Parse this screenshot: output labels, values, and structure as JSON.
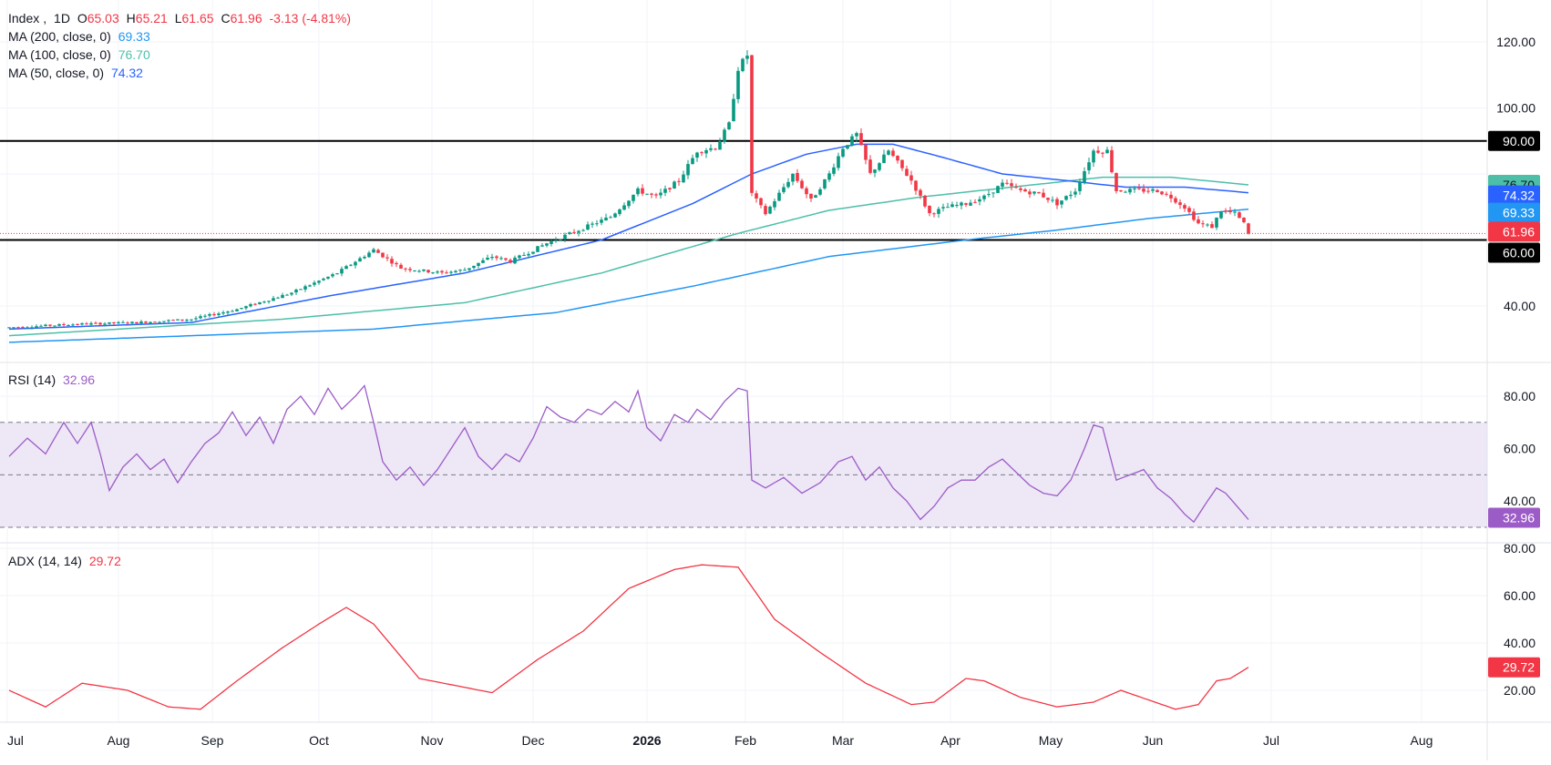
{
  "symbol": {
    "name": "Index",
    "interval": "1D",
    "open_label": "O",
    "open": "65.03",
    "high_label": "H",
    "high": "65.21",
    "low_label": "L",
    "low": "61.65",
    "close_label": "C",
    "close": "61.96",
    "change": "-3.13 (-4.81%)"
  },
  "indicators": {
    "ma200": {
      "label": "MA (200, close, 0)",
      "value": "69.33",
      "color": "#2196f3"
    },
    "ma100": {
      "label": "MA (100, close, 0)",
      "value": "76.70",
      "color": "#4dbfa9"
    },
    "ma50": {
      "label": "MA (50, close, 0)",
      "value": "74.32",
      "color": "#2962ff"
    },
    "rsi": {
      "label": "RSI (14)",
      "value": "32.96",
      "color": "#9c5cc7"
    },
    "adx": {
      "label": "ADX (14, 14)",
      "value": "29.72",
      "color": "#f23645"
    }
  },
  "colors": {
    "up": "#089981",
    "down": "#f23645",
    "level_line": "#000000",
    "rsi_band": "#ede7f6",
    "grid": "#f0f3fa",
    "axis_text": "#131722"
  },
  "price_axis": {
    "ticks": [
      "120.00",
      "100.00",
      "40.00"
    ],
    "levels": [
      "90.00",
      "60.00"
    ],
    "current_price": "61.96",
    "level_values": [
      90,
      60
    ]
  },
  "rsi_axis": {
    "ticks": [
      "80.00",
      "60.00",
      "40.00"
    ],
    "bands": [
      70,
      50,
      30
    ]
  },
  "adx_axis": {
    "ticks": [
      "80.00",
      "60.00",
      "40.00",
      "20.00"
    ]
  },
  "time_axis": [
    {
      "label": "Jul",
      "bold": false
    },
    {
      "label": "Aug",
      "bold": false
    },
    {
      "label": "Sep",
      "bold": false
    },
    {
      "label": "Oct",
      "bold": false
    },
    {
      "label": "Nov",
      "bold": false
    },
    {
      "label": "Dec",
      "bold": false
    },
    {
      "label": "2026",
      "bold": true
    },
    {
      "label": "Feb",
      "bold": false
    },
    {
      "label": "Mar",
      "bold": false
    },
    {
      "label": "Apr",
      "bold": false
    },
    {
      "label": "May",
      "bold": false
    },
    {
      "label": "Jun",
      "bold": false
    },
    {
      "label": "Jul",
      "bold": false
    },
    {
      "label": "Aug",
      "bold": false
    }
  ],
  "chart_data": {
    "type": "line",
    "title": "Index, 1D",
    "x_unit": "trading days (daily bars, Jul 2025 – Jun 2026)",
    "price_ylim": [
      22,
      132
    ],
    "price_anchors": [
      [
        0,
        33.5
      ],
      [
        15,
        34.5
      ],
      [
        28,
        35
      ],
      [
        40,
        36
      ],
      [
        50,
        39
      ],
      [
        62,
        44
      ],
      [
        72,
        50
      ],
      [
        80,
        57
      ],
      [
        86,
        51.5
      ],
      [
        95,
        50
      ],
      [
        100,
        51
      ],
      [
        106,
        55
      ],
      [
        110,
        53.5
      ],
      [
        118,
        59
      ],
      [
        125,
        63
      ],
      [
        132,
        67
      ],
      [
        138,
        75
      ],
      [
        142,
        73
      ],
      [
        147,
        78
      ],
      [
        151,
        87
      ],
      [
        155,
        88
      ],
      [
        158,
        95
      ],
      [
        160,
        112
      ],
      [
        162,
        116
      ],
      [
        163,
        74
      ],
      [
        166,
        68
      ],
      [
        172,
        80
      ],
      [
        176,
        72
      ],
      [
        180,
        80
      ],
      [
        183,
        88
      ],
      [
        186,
        92
      ],
      [
        189,
        80
      ],
      [
        193,
        87
      ],
      [
        198,
        78
      ],
      [
        202,
        68
      ],
      [
        206,
        70
      ],
      [
        210,
        71
      ],
      [
        214,
        73
      ],
      [
        218,
        77
      ],
      [
        222,
        75
      ],
      [
        226,
        74
      ],
      [
        230,
        71
      ],
      [
        234,
        75
      ],
      [
        238,
        87
      ],
      [
        241,
        87
      ],
      [
        243,
        75
      ],
      [
        248,
        75
      ],
      [
        252,
        75
      ],
      [
        255,
        73
      ],
      [
        258,
        70
      ],
      [
        261,
        65
      ],
      [
        264,
        64
      ],
      [
        266,
        69
      ],
      [
        269,
        68
      ],
      [
        271,
        65
      ],
      [
        272,
        61.96
      ]
    ],
    "ma50_anchors": [
      [
        0,
        33
      ],
      [
        40,
        35
      ],
      [
        70,
        43
      ],
      [
        100,
        50
      ],
      [
        130,
        60
      ],
      [
        150,
        71
      ],
      [
        163,
        80
      ],
      [
        175,
        86
      ],
      [
        186,
        89
      ],
      [
        194,
        89
      ],
      [
        205,
        85
      ],
      [
        218,
        80
      ],
      [
        232,
        78
      ],
      [
        245,
        76
      ],
      [
        258,
        76
      ],
      [
        272,
        74.32
      ]
    ],
    "ma100_anchors": [
      [
        0,
        31
      ],
      [
        60,
        36
      ],
      [
        100,
        41
      ],
      [
        130,
        50
      ],
      [
        160,
        62
      ],
      [
        180,
        69
      ],
      [
        200,
        73
      ],
      [
        220,
        76
      ],
      [
        240,
        79
      ],
      [
        255,
        79
      ],
      [
        272,
        76.7
      ]
    ],
    "ma200_anchors": [
      [
        0,
        29
      ],
      [
        80,
        33
      ],
      [
        120,
        38
      ],
      [
        150,
        46
      ],
      [
        180,
        55
      ],
      [
        210,
        60
      ],
      [
        230,
        63
      ],
      [
        250,
        66.5
      ],
      [
        272,
        69.33
      ]
    ],
    "rsi_ylim": [
      25,
      88
    ],
    "rsi_anchors": [
      [
        0,
        57
      ],
      [
        4,
        64
      ],
      [
        8,
        58
      ],
      [
        12,
        70
      ],
      [
        15,
        62
      ],
      [
        18,
        70
      ],
      [
        20,
        58
      ],
      [
        22,
        44
      ],
      [
        25,
        53
      ],
      [
        28,
        58
      ],
      [
        31,
        52
      ],
      [
        34,
        56
      ],
      [
        37,
        47
      ],
      [
        40,
        55
      ],
      [
        43,
        62
      ],
      [
        46,
        66
      ],
      [
        49,
        74
      ],
      [
        52,
        65
      ],
      [
        55,
        72
      ],
      [
        58,
        62
      ],
      [
        61,
        75
      ],
      [
        64,
        80
      ],
      [
        67,
        73
      ],
      [
        70,
        83
      ],
      [
        73,
        75
      ],
      [
        76,
        80
      ],
      [
        78,
        84
      ],
      [
        80,
        70
      ],
      [
        82,
        55
      ],
      [
        85,
        48
      ],
      [
        88,
        53
      ],
      [
        91,
        46
      ],
      [
        94,
        52
      ],
      [
        97,
        60
      ],
      [
        100,
        68
      ],
      [
        103,
        57
      ],
      [
        106,
        52
      ],
      [
        109,
        58
      ],
      [
        112,
        55
      ],
      [
        115,
        64
      ],
      [
        118,
        76
      ],
      [
        121,
        72
      ],
      [
        124,
        70
      ],
      [
        127,
        75
      ],
      [
        130,
        73
      ],
      [
        133,
        78
      ],
      [
        136,
        74
      ],
      [
        138,
        82
      ],
      [
        140,
        68
      ],
      [
        143,
        63
      ],
      [
        146,
        73
      ],
      [
        149,
        70
      ],
      [
        151,
        75
      ],
      [
        154,
        71
      ],
      [
        157,
        78
      ],
      [
        160,
        83
      ],
      [
        162,
        82
      ],
      [
        163,
        48
      ],
      [
        166,
        45
      ],
      [
        170,
        49
      ],
      [
        174,
        43
      ],
      [
        178,
        47
      ],
      [
        182,
        55
      ],
      [
        185,
        57
      ],
      [
        188,
        48
      ],
      [
        191,
        53
      ],
      [
        194,
        45
      ],
      [
        197,
        40
      ],
      [
        200,
        33
      ],
      [
        203,
        38
      ],
      [
        206,
        45
      ],
      [
        209,
        48
      ],
      [
        212,
        48
      ],
      [
        215,
        53
      ],
      [
        218,
        56
      ],
      [
        221,
        51
      ],
      [
        224,
        46
      ],
      [
        227,
        43
      ],
      [
        230,
        42
      ],
      [
        233,
        48
      ],
      [
        236,
        60
      ],
      [
        238,
        69
      ],
      [
        240,
        68
      ],
      [
        243,
        48
      ],
      [
        246,
        50
      ],
      [
        249,
        52
      ],
      [
        252,
        45
      ],
      [
        255,
        41
      ],
      [
        258,
        35
      ],
      [
        260,
        32
      ],
      [
        263,
        40
      ],
      [
        265,
        45
      ],
      [
        267,
        43
      ],
      [
        270,
        37
      ],
      [
        272,
        32.96
      ]
    ],
    "adx_ylim": [
      8,
      84
    ],
    "adx_anchors": [
      [
        0,
        20
      ],
      [
        8,
        13
      ],
      [
        16,
        23
      ],
      [
        26,
        20
      ],
      [
        35,
        13
      ],
      [
        42,
        12
      ],
      [
        50,
        24
      ],
      [
        60,
        38
      ],
      [
        68,
        48
      ],
      [
        74,
        55
      ],
      [
        80,
        48
      ],
      [
        90,
        25
      ],
      [
        98,
        22
      ],
      [
        106,
        19
      ],
      [
        116,
        33
      ],
      [
        126,
        45
      ],
      [
        136,
        63
      ],
      [
        146,
        71
      ],
      [
        152,
        73
      ],
      [
        160,
        72
      ],
      [
        168,
        50
      ],
      [
        178,
        36
      ],
      [
        188,
        23
      ],
      [
        198,
        14
      ],
      [
        203,
        15
      ],
      [
        210,
        25
      ],
      [
        214,
        24
      ],
      [
        222,
        17
      ],
      [
        230,
        13
      ],
      [
        238,
        15
      ],
      [
        244,
        20
      ],
      [
        250,
        16
      ],
      [
        256,
        12
      ],
      [
        261,
        14
      ],
      [
        265,
        24
      ],
      [
        268,
        25
      ],
      [
        272,
        29.72
      ]
    ]
  }
}
